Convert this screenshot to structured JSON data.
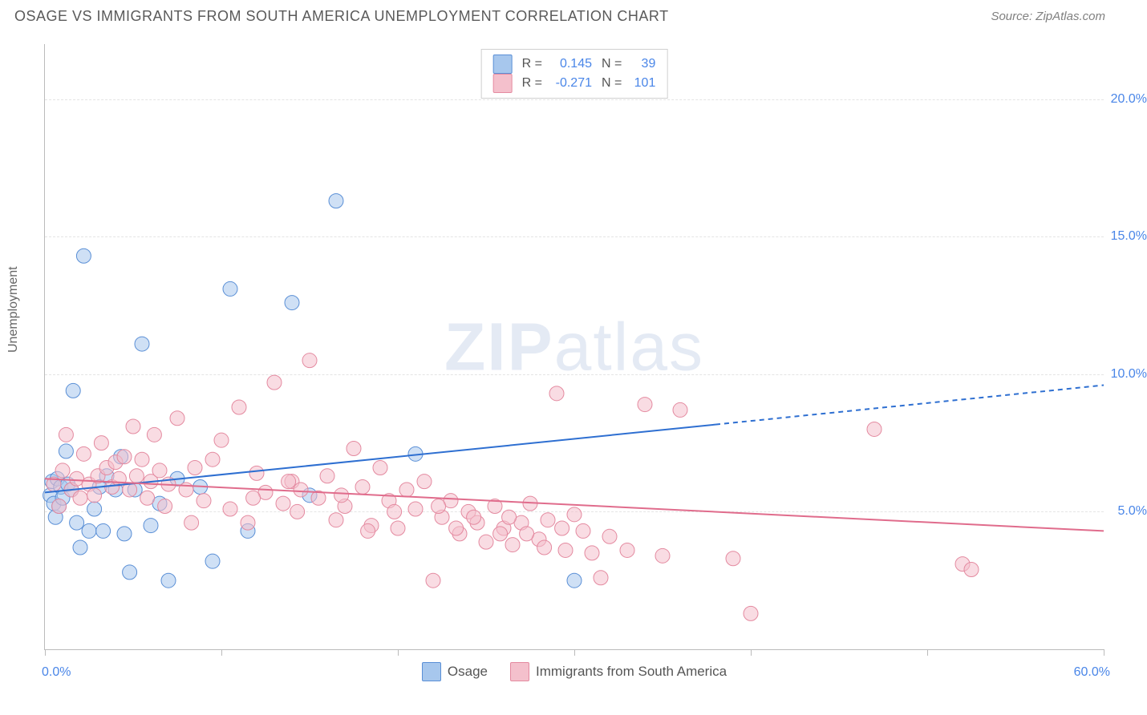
{
  "header": {
    "title": "OSAGE VS IMMIGRANTS FROM SOUTH AMERICA UNEMPLOYMENT CORRELATION CHART",
    "source": "Source: ZipAtlas.com"
  },
  "watermark": {
    "zip": "ZIP",
    "atlas": "atlas"
  },
  "chart": {
    "type": "scatter",
    "ylabel": "Unemployment",
    "background_color": "#ffffff",
    "grid_color": "#e4e4e4",
    "axis_color": "#bbbbbb",
    "xlim": [
      0,
      60
    ],
    "ylim": [
      0,
      22
    ],
    "x_ticks": [
      0,
      10,
      20,
      30,
      40,
      50,
      60
    ],
    "x_tick_labels": {
      "0": "0.0%",
      "60": "60.0%"
    },
    "y_ticks": [
      5.0,
      10.0,
      15.0,
      20.0
    ],
    "y_tick_labels": [
      "5.0%",
      "10.0%",
      "15.0%",
      "20.0%"
    ],
    "tick_label_color": "#4a86e8",
    "marker_radius": 9,
    "marker_opacity": 0.55,
    "series": [
      {
        "name": "Osage",
        "color_fill": "#a7c7ed",
        "color_stroke": "#5a8fd6",
        "r": 0.145,
        "n": 39,
        "trend": {
          "y_at_x0": 5.7,
          "y_at_x60": 9.6,
          "solid_until_x": 38,
          "color": "#2e6fd1",
          "width": 2
        },
        "points": [
          [
            0.3,
            5.6
          ],
          [
            0.4,
            6.1
          ],
          [
            0.5,
            5.3
          ],
          [
            0.6,
            4.8
          ],
          [
            0.7,
            6.2
          ],
          [
            0.8,
            5.2
          ],
          [
            0.9,
            5.9
          ],
          [
            1.0,
            5.5
          ],
          [
            1.2,
            7.2
          ],
          [
            1.3,
            6.0
          ],
          [
            1.5,
            5.8
          ],
          [
            1.6,
            9.4
          ],
          [
            1.8,
            4.6
          ],
          [
            2.0,
            3.7
          ],
          [
            2.2,
            14.3
          ],
          [
            2.5,
            4.3
          ],
          [
            2.8,
            5.1
          ],
          [
            3.1,
            5.9
          ],
          [
            3.3,
            4.3
          ],
          [
            3.5,
            6.3
          ],
          [
            4.0,
            5.8
          ],
          [
            4.3,
            7.0
          ],
          [
            4.5,
            4.2
          ],
          [
            4.8,
            2.8
          ],
          [
            5.1,
            5.8
          ],
          [
            5.5,
            11.1
          ],
          [
            6.0,
            4.5
          ],
          [
            6.5,
            5.3
          ],
          [
            7.0,
            2.5
          ],
          [
            7.5,
            6.2
          ],
          [
            8.8,
            5.9
          ],
          [
            9.5,
            3.2
          ],
          [
            10.5,
            13.1
          ],
          [
            11.5,
            4.3
          ],
          [
            14.0,
            12.6
          ],
          [
            15.0,
            5.6
          ],
          [
            16.5,
            16.3
          ],
          [
            30.0,
            2.5
          ],
          [
            21.0,
            7.1
          ]
        ]
      },
      {
        "name": "Immigrants from South America",
        "color_fill": "#f4c0cc",
        "color_stroke": "#e48aa0",
        "r": -0.271,
        "n": 101,
        "trend": {
          "y_at_x0": 6.2,
          "y_at_x60": 4.3,
          "solid_until_x": 60,
          "color": "#e06c8c",
          "width": 2
        },
        "points": [
          [
            0.5,
            6.0
          ],
          [
            0.8,
            5.2
          ],
          [
            1.0,
            6.5
          ],
          [
            1.2,
            7.8
          ],
          [
            1.5,
            5.8
          ],
          [
            1.8,
            6.2
          ],
          [
            2.0,
            5.5
          ],
          [
            2.2,
            7.1
          ],
          [
            2.5,
            6.0
          ],
          [
            2.8,
            5.6
          ],
          [
            3.0,
            6.3
          ],
          [
            3.2,
            7.5
          ],
          [
            3.5,
            6.6
          ],
          [
            3.8,
            5.9
          ],
          [
            4.0,
            6.8
          ],
          [
            4.2,
            6.2
          ],
          [
            4.5,
            7.0
          ],
          [
            4.8,
            5.8
          ],
          [
            5.0,
            8.1
          ],
          [
            5.2,
            6.3
          ],
          [
            5.5,
            6.9
          ],
          [
            5.8,
            5.5
          ],
          [
            6.0,
            6.1
          ],
          [
            6.2,
            7.8
          ],
          [
            6.5,
            6.5
          ],
          [
            6.8,
            5.2
          ],
          [
            7.0,
            6.0
          ],
          [
            7.5,
            8.4
          ],
          [
            8.0,
            5.8
          ],
          [
            8.5,
            6.6
          ],
          [
            9.0,
            5.4
          ],
          [
            9.5,
            6.9
          ],
          [
            10.0,
            7.6
          ],
          [
            10.5,
            5.1
          ],
          [
            11.0,
            8.8
          ],
          [
            11.5,
            4.6
          ],
          [
            12.0,
            6.4
          ],
          [
            12.5,
            5.7
          ],
          [
            13.0,
            9.7
          ],
          [
            13.5,
            5.3
          ],
          [
            14.0,
            6.1
          ],
          [
            14.5,
            5.8
          ],
          [
            15.0,
            10.5
          ],
          [
            15.5,
            5.5
          ],
          [
            16.0,
            6.3
          ],
          [
            16.5,
            4.7
          ],
          [
            17.0,
            5.2
          ],
          [
            17.5,
            7.3
          ],
          [
            18.0,
            5.9
          ],
          [
            18.5,
            4.5
          ],
          [
            19.0,
            6.6
          ],
          [
            19.5,
            5.4
          ],
          [
            20.0,
            4.4
          ],
          [
            20.5,
            5.8
          ],
          [
            21.0,
            5.1
          ],
          [
            21.5,
            6.1
          ],
          [
            22.0,
            2.5
          ],
          [
            22.5,
            4.8
          ],
          [
            23.0,
            5.4
          ],
          [
            23.5,
            4.2
          ],
          [
            24.0,
            5.0
          ],
          [
            24.5,
            4.6
          ],
          [
            25.0,
            3.9
          ],
          [
            25.5,
            5.2
          ],
          [
            26.0,
            4.4
          ],
          [
            26.5,
            3.8
          ],
          [
            27.0,
            4.6
          ],
          [
            27.5,
            5.3
          ],
          [
            28.0,
            4.0
          ],
          [
            28.5,
            4.7
          ],
          [
            29.0,
            9.3
          ],
          [
            29.5,
            3.6
          ],
          [
            30.0,
            4.9
          ],
          [
            30.5,
            4.3
          ],
          [
            31.0,
            3.5
          ],
          [
            31.5,
            2.6
          ],
          [
            32.0,
            4.1
          ],
          [
            33.0,
            3.6
          ],
          [
            34.0,
            8.9
          ],
          [
            35.0,
            3.4
          ],
          [
            36.0,
            8.7
          ],
          [
            39.0,
            3.3
          ],
          [
            47.0,
            8.0
          ],
          [
            52.0,
            3.1
          ],
          [
            52.5,
            2.9
          ],
          [
            40.0,
            1.3
          ],
          [
            13.8,
            6.1
          ],
          [
            8.3,
            4.6
          ],
          [
            11.8,
            5.5
          ],
          [
            14.3,
            5.0
          ],
          [
            16.8,
            5.6
          ],
          [
            18.3,
            4.3
          ],
          [
            19.8,
            5.0
          ],
          [
            22.3,
            5.2
          ],
          [
            23.3,
            4.4
          ],
          [
            24.3,
            4.8
          ],
          [
            25.8,
            4.2
          ],
          [
            26.3,
            4.8
          ],
          [
            27.3,
            4.2
          ],
          [
            28.3,
            3.7
          ],
          [
            29.3,
            4.4
          ]
        ]
      }
    ]
  },
  "legend_top": {
    "r_label": "R =",
    "n_label": "N ="
  },
  "legend_bottom": {
    "items": [
      {
        "label": "Osage",
        "fill": "#a7c7ed",
        "stroke": "#5a8fd6"
      },
      {
        "label": "Immigrants from South America",
        "fill": "#f4c0cc",
        "stroke": "#e48aa0"
      }
    ]
  }
}
